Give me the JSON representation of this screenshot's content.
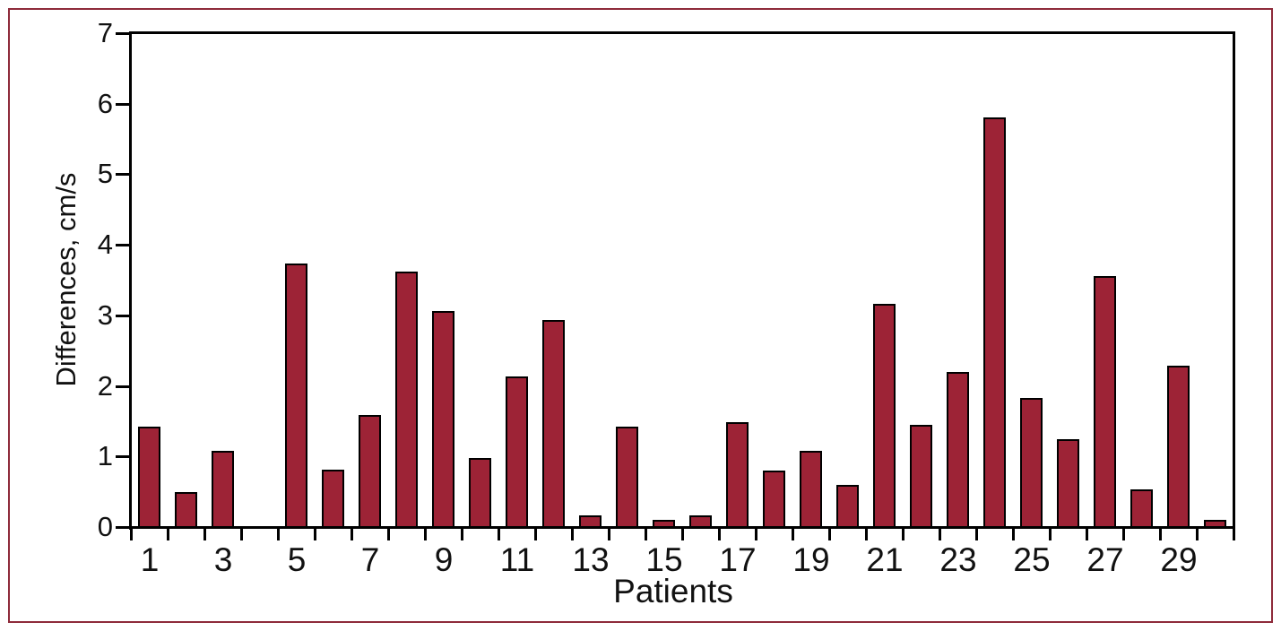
{
  "figure": {
    "border_color": "#8e2a3a",
    "background_color": "#ffffff"
  },
  "chart_data": {
    "type": "bar",
    "title": "",
    "xlabel": "Patients",
    "ylabel": "Differences, cm/s",
    "categories": [
      1,
      2,
      3,
      4,
      5,
      6,
      7,
      8,
      9,
      10,
      11,
      12,
      13,
      14,
      15,
      16,
      17,
      18,
      19,
      20,
      21,
      22,
      23,
      24,
      25,
      26,
      27,
      28,
      29,
      30
    ],
    "values": [
      1.42,
      0.49,
      1.08,
      0,
      3.73,
      0.81,
      1.59,
      3.62,
      3.06,
      0.98,
      2.14,
      2.94,
      0.17,
      1.42,
      0.1,
      0.16,
      1.49,
      0.8,
      1.08,
      0.6,
      3.16,
      1.45,
      2.2,
      5.8,
      1.83,
      1.25,
      3.56,
      0.53,
      2.29,
      0.1
    ],
    "ylim": [
      0,
      7
    ],
    "y_ticks": [
      0,
      1,
      2,
      3,
      4,
      5,
      6,
      7
    ],
    "x_tick_labels": [
      1,
      3,
      5,
      7,
      9,
      11,
      13,
      15,
      17,
      19,
      21,
      23,
      25,
      27,
      29
    ],
    "bar_color": "#9d2336",
    "bar_edge_color": "#000000",
    "axis_color": "#000000",
    "grid": false,
    "legend_position": null
  }
}
